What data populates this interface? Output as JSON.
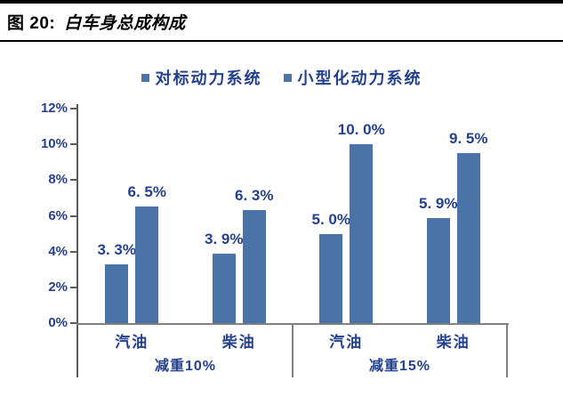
{
  "figure": {
    "title_prefix": "图 20:",
    "title": "白车身总成构成"
  },
  "colors": {
    "bar": "#4A74A8",
    "chart_text": "#24418E",
    "y_axis_line": "#5A5A5A",
    "x_axis_line": "#808080",
    "caption_rule": "#000000",
    "background": "#FFFFFF"
  },
  "chart_data": {
    "type": "bar",
    "title": "图 20: 白车身总成构成",
    "legend_position": "top",
    "grid": false,
    "ylim": [
      0,
      12
    ],
    "ylabel": "",
    "xlabel": "",
    "y_ticks": [
      "0%",
      "2%",
      "4%",
      "6%",
      "8%",
      "10%",
      "12%"
    ],
    "groups": [
      {
        "label": "减重10%",
        "categories": [
          "汽油",
          "柴油"
        ]
      },
      {
        "label": "减重15%",
        "categories": [
          "汽油",
          "柴油"
        ]
      }
    ],
    "series": [
      {
        "name": "对标动力系统",
        "color": "#4A74A8",
        "values": [
          3.3,
          3.9,
          5.0,
          5.9
        ],
        "labels": [
          "3. 3%",
          "3. 9%",
          "5. 0%",
          "5. 9%"
        ]
      },
      {
        "name": "小型化动力系统",
        "color": "#4A74A8",
        "values": [
          6.5,
          6.3,
          10.0,
          9.5
        ],
        "labels": [
          "6. 5%",
          "6. 3%",
          "10. 0%",
          "9. 5%"
        ]
      }
    ]
  }
}
